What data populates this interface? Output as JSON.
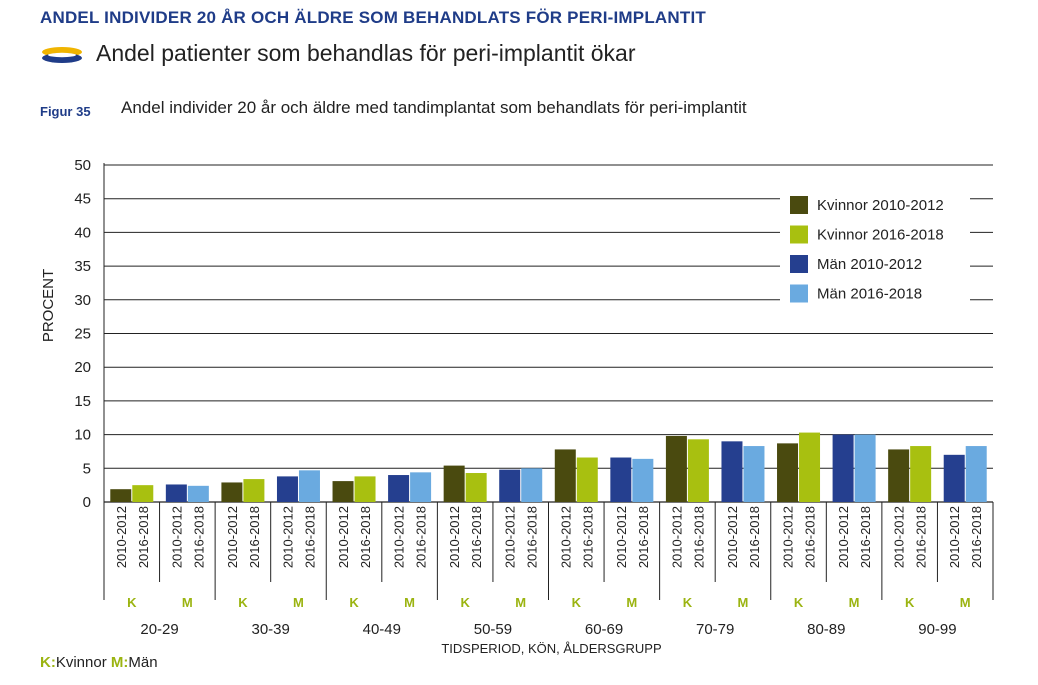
{
  "header": {
    "title": "ANDEL INDIVIDER 20 ÅR OCH ÄLDRE SOM BEHANDLATS FÖR PERI-IMPLANTIT",
    "subtitle": "Andel patienter som behandlas för peri-implantit ökar",
    "figure_label": "Figur 35",
    "figure_title": "Andel individer 20 år och äldre med tandimplantat som behandlats för peri-implantit"
  },
  "footnote": {
    "k_key": "K:",
    "k_text": "Kvinnor",
    "m_key": "M:",
    "m_text": "Män"
  },
  "colors": {
    "kvinnor_2010": "#4a4a0f",
    "kvinnor_2016": "#a8c010",
    "man_2010": "#253f8f",
    "man_2016": "#6aaae0",
    "k_letter": "#9bb411",
    "title_blue": "#1f3c88"
  },
  "chart_data": {
    "type": "bar",
    "ylabel": "PROCENT",
    "xlabel": "TIDSPERIOD, KÖN, ÅLDERSGRUPP",
    "ylim": [
      0,
      50
    ],
    "yticks": [
      0,
      5,
      10,
      15,
      20,
      25,
      30,
      35,
      40,
      45,
      50
    ],
    "grid": true,
    "legend_position": "top-right",
    "categories": [
      "20-29",
      "30-39",
      "40-49",
      "50-59",
      "60-69",
      "70-79",
      "80-89",
      "90-99"
    ],
    "sex_labels": [
      "K",
      "M"
    ],
    "period_labels": [
      "2010-2012",
      "2016-2018"
    ],
    "series": [
      {
        "name": "Kvinnor 2010-2012",
        "color": "#4a4a0f",
        "values": [
          1.9,
          2.9,
          3.1,
          5.4,
          7.8,
          9.8,
          8.7,
          7.8
        ]
      },
      {
        "name": "Kvinnor 2016-2018",
        "color": "#a8c010",
        "values": [
          2.5,
          3.4,
          3.8,
          4.3,
          6.6,
          9.3,
          10.3,
          8.3
        ]
      },
      {
        "name": "Män 2010-2012",
        "color": "#253f8f",
        "values": [
          2.6,
          3.8,
          4.0,
          4.8,
          6.6,
          9.0,
          10.0,
          7.0
        ]
      },
      {
        "name": "Män 2016-2018",
        "color": "#6aaae0",
        "values": [
          2.4,
          4.7,
          4.4,
          5.0,
          6.4,
          8.3,
          10.0,
          8.3
        ]
      }
    ]
  }
}
